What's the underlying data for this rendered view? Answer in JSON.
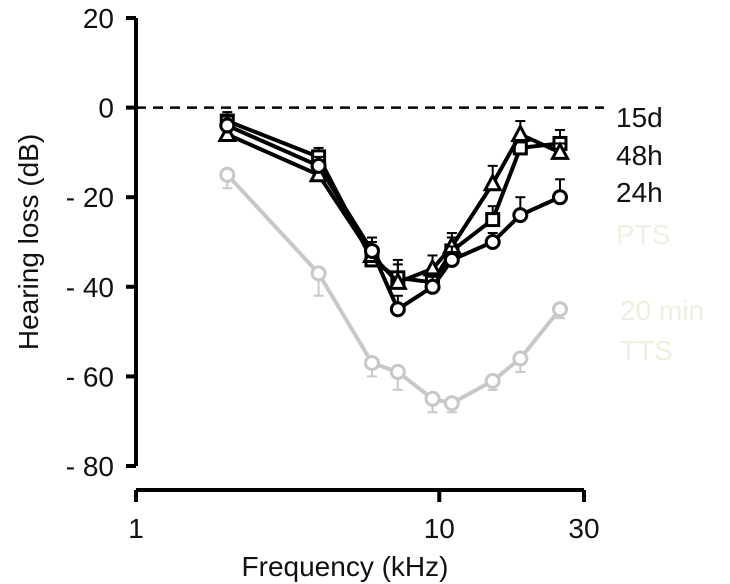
{
  "chart_data": {
    "type": "line",
    "title": "",
    "xlabel": "Frequency (kHz)",
    "ylabel": "Hearing loss (dB)",
    "x_scale": "log",
    "xlim": [
      1,
      30
    ],
    "ylim": [
      -80,
      20
    ],
    "x_ticks": [
      1,
      10,
      30
    ],
    "x_tick_labels": [
      "1",
      "10",
      "30"
    ],
    "y_ticks": [
      20,
      0,
      -20,
      -40,
      -60,
      -80
    ],
    "y_tick_labels": [
      "20",
      "0",
      "- 20",
      "- 40",
      "- 60",
      "- 80"
    ],
    "grid": false,
    "reference_line": {
      "y": 0,
      "style": "dashed"
    },
    "legend_placement": "right",
    "x": [
      2,
      4,
      5.6,
      8,
      11.3,
      16,
      22.6
    ],
    "series": [
      {
        "name": "15d",
        "marker": "square",
        "color": "#000000",
        "x": [
          2,
          4,
          6,
          7.3,
          9.5,
          11,
          15,
          18.5,
          25
        ],
        "values": [
          -3,
          -11,
          -34,
          -38,
          -39,
          -32,
          -25,
          -9,
          -8
        ],
        "errors": [
          2,
          2,
          3,
          4,
          3,
          3,
          3,
          3,
          3
        ]
      },
      {
        "name": "48h",
        "marker": "triangle",
        "color": "#000000",
        "x": [
          2,
          4,
          6,
          7.3,
          9.5,
          11,
          15,
          18.5,
          25
        ],
        "values": [
          -6,
          -15,
          -33,
          -39,
          -36,
          -31,
          -17,
          -6,
          -10
        ],
        "errors": [
          2,
          2,
          3,
          4,
          3,
          3,
          4,
          3,
          2
        ]
      },
      {
        "name": "24h",
        "marker": "circle",
        "color": "#000000",
        "x": [
          2,
          4,
          6,
          7.3,
          9.5,
          11,
          15,
          18.5,
          25
        ],
        "values": [
          -4,
          -13,
          -32,
          -45,
          -40,
          -34,
          -30,
          -24,
          -20
        ],
        "errors": [
          2,
          2,
          3,
          3,
          3,
          3,
          2,
          4,
          4
        ]
      },
      {
        "name": "PTS",
        "marker": "none",
        "color": "#f2f0e4",
        "x": [],
        "values": []
      },
      {
        "name": "20 min TTS",
        "name_lines": [
          "20 min",
          "TTS"
        ],
        "marker": "circle",
        "color": "#c8c8c8",
        "label_color": "#f0eedd",
        "x": [
          2,
          4,
          6,
          7.3,
          9.5,
          11,
          15,
          18.5,
          25
        ],
        "values": [
          -15,
          -37,
          -57,
          -59,
          -65,
          -66,
          -61,
          -56,
          -45
        ],
        "errors": [
          3,
          5,
          3,
          4,
          3,
          2,
          2,
          3,
          2
        ]
      }
    ]
  }
}
